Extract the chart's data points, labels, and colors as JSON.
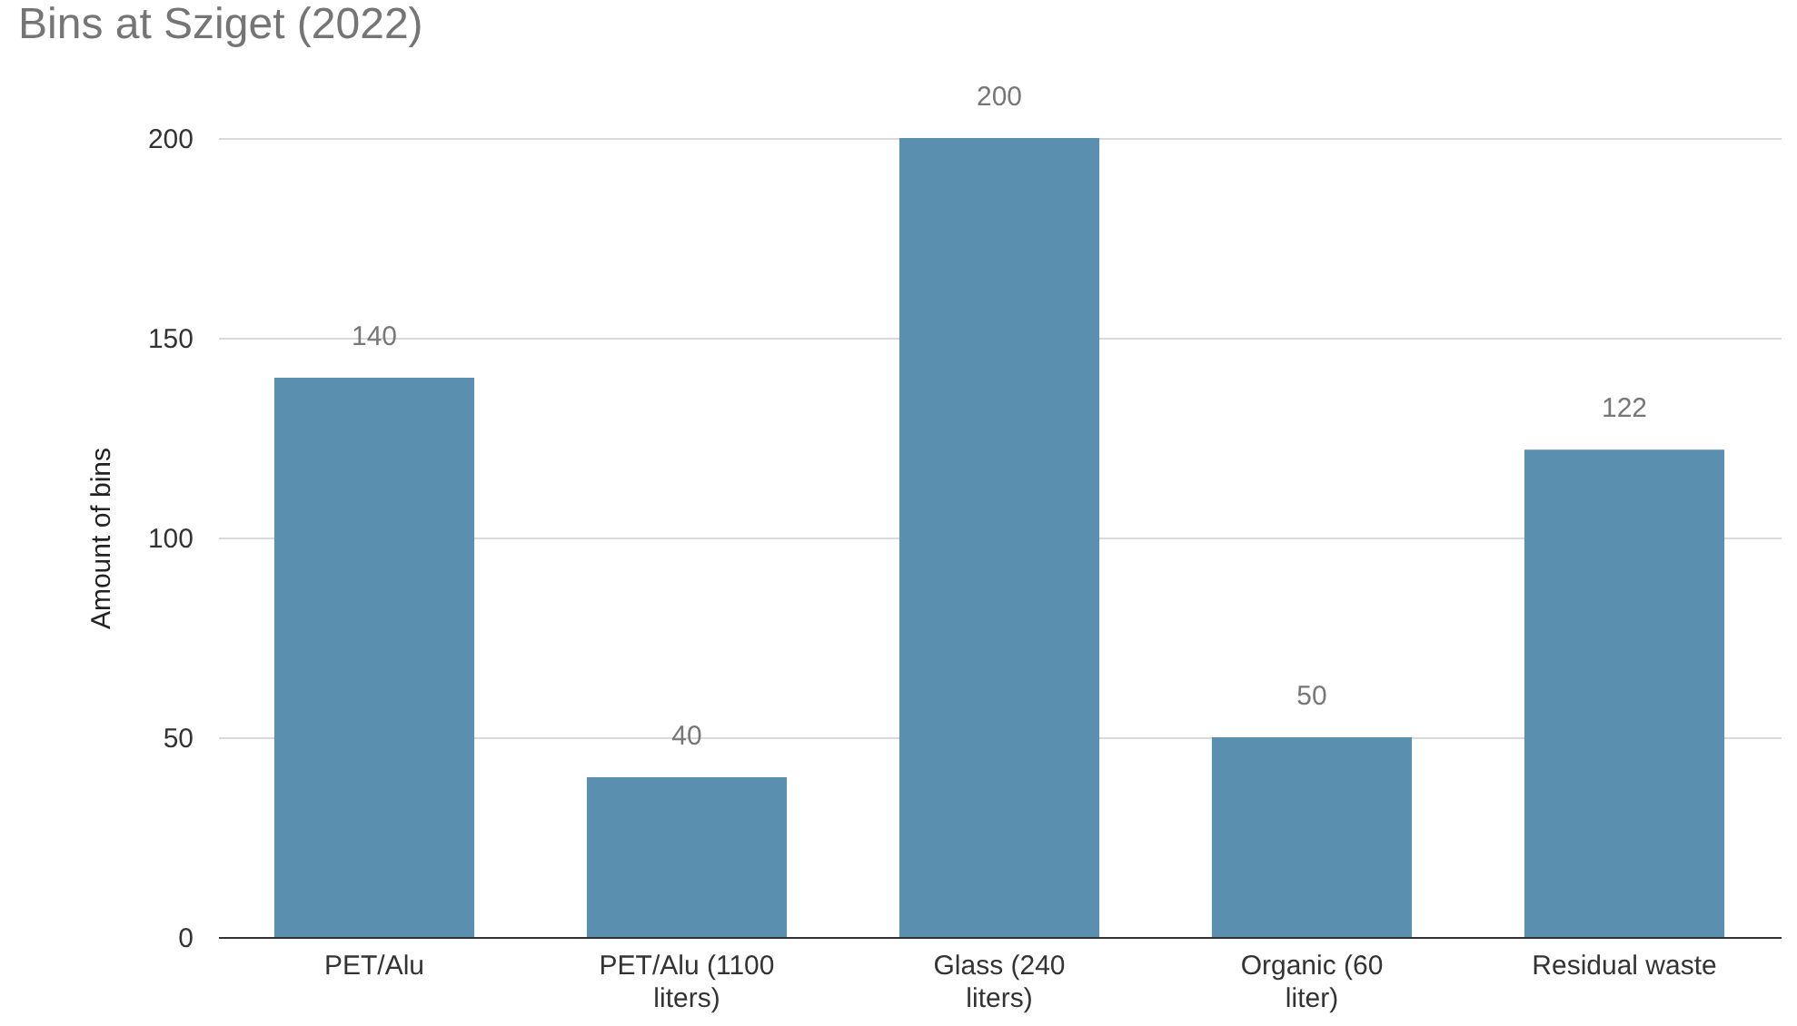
{
  "chart_data": {
    "type": "bar",
    "title": "Bins at Sziget (2022)",
    "ylabel": "Amount of bins",
    "categories": [
      "PET/Alu",
      "PET/Alu (1100 liters)",
      "Glass (240 liters)",
      "Organic (60 liter)",
      "Residual waste"
    ],
    "values": [
      140,
      40,
      200,
      50,
      122
    ],
    "color": "#5b8fb0",
    "ylim": [
      0,
      200
    ],
    "yticks": [
      0,
      50,
      100,
      150,
      200
    ],
    "grid": "y",
    "data_labels": true
  }
}
